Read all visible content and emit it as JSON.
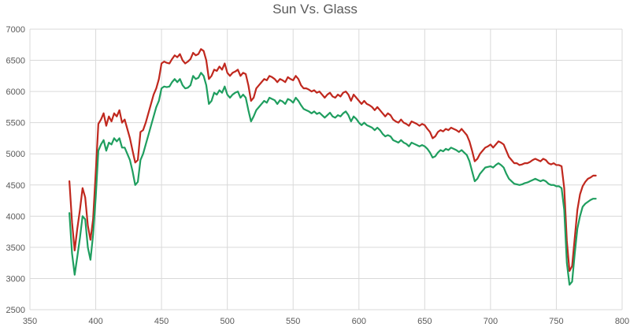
{
  "chart_data": {
    "type": "line",
    "title": "Sun Vs. Glass",
    "xlabel": "",
    "ylabel": "",
    "xlim": [
      350,
      800
    ],
    "ylim": [
      2500,
      7000
    ],
    "grid": true,
    "legend": "none",
    "x_ticks": [
      350,
      400,
      450,
      500,
      550,
      600,
      650,
      700,
      750,
      800
    ],
    "y_ticks": [
      2500,
      3000,
      3500,
      4000,
      4500,
      5000,
      5500,
      6000,
      6500,
      7000
    ],
    "series": [
      {
        "color": "#c0281e",
        "x": [
          380,
          382,
          384,
          386,
          388,
          390,
          392,
          394,
          396,
          398,
          400,
          402,
          404,
          406,
          408,
          410,
          412,
          414,
          416,
          418,
          420,
          422,
          424,
          426,
          428,
          430,
          432,
          434,
          436,
          438,
          440,
          442,
          444,
          446,
          448,
          450,
          452,
          454,
          456,
          458,
          460,
          462,
          464,
          466,
          468,
          470,
          472,
          474,
          476,
          478,
          480,
          482,
          484,
          486,
          488,
          490,
          492,
          494,
          496,
          498,
          500,
          502,
          504,
          506,
          508,
          510,
          512,
          514,
          516,
          518,
          520,
          522,
          524,
          526,
          528,
          530,
          532,
          534,
          536,
          538,
          540,
          542,
          544,
          546,
          548,
          550,
          552,
          554,
          556,
          558,
          560,
          562,
          564,
          566,
          568,
          570,
          572,
          574,
          576,
          578,
          580,
          582,
          584,
          586,
          588,
          590,
          592,
          594,
          596,
          598,
          600,
          602,
          604,
          606,
          608,
          610,
          612,
          614,
          616,
          618,
          620,
          622,
          624,
          626,
          628,
          630,
          632,
          634,
          636,
          638,
          640,
          642,
          644,
          646,
          648,
          650,
          652,
          654,
          656,
          658,
          660,
          662,
          664,
          666,
          668,
          670,
          672,
          674,
          676,
          678,
          680,
          682,
          684,
          686,
          688,
          690,
          692,
          694,
          696,
          698,
          700,
          702,
          704,
          706,
          708,
          710,
          712,
          714,
          716,
          718,
          720,
          722,
          724,
          726,
          728,
          730,
          732,
          734,
          736,
          738,
          740,
          742,
          744,
          746,
          748,
          750,
          752,
          754,
          756,
          758,
          760,
          762,
          764,
          766,
          768,
          770,
          772,
          774,
          776,
          778,
          780
        ],
        "values": [
          4560,
          3900,
          3450,
          3800,
          4100,
          4450,
          4300,
          3850,
          3620,
          3950,
          4700,
          5480,
          5550,
          5650,
          5450,
          5600,
          5520,
          5650,
          5600,
          5700,
          5500,
          5550,
          5400,
          5250,
          5050,
          4860,
          4900,
          5350,
          5380,
          5500,
          5650,
          5800,
          5950,
          6050,
          6200,
          6450,
          6480,
          6460,
          6450,
          6520,
          6580,
          6550,
          6600,
          6500,
          6450,
          6480,
          6520,
          6620,
          6580,
          6600,
          6680,
          6650,
          6500,
          6200,
          6250,
          6350,
          6330,
          6400,
          6350,
          6450,
          6300,
          6250,
          6300,
          6320,
          6350,
          6250,
          6300,
          6280,
          6100,
          5850,
          5900,
          6050,
          6100,
          6150,
          6200,
          6180,
          6250,
          6230,
          6200,
          6150,
          6200,
          6180,
          6150,
          6230,
          6200,
          6180,
          6250,
          6200,
          6100,
          6050,
          6050,
          6030,
          6000,
          6020,
          5980,
          6000,
          5950,
          5900,
          5950,
          5980,
          5920,
          5900,
          5950,
          5920,
          5980,
          6000,
          5950,
          5850,
          5950,
          5900,
          5850,
          5800,
          5850,
          5800,
          5780,
          5750,
          5700,
          5750,
          5700,
          5650,
          5600,
          5650,
          5620,
          5550,
          5520,
          5500,
          5550,
          5500,
          5480,
          5450,
          5520,
          5500,
          5480,
          5450,
          5480,
          5460,
          5400,
          5350,
          5250,
          5280,
          5350,
          5380,
          5360,
          5400,
          5380,
          5420,
          5400,
          5380,
          5350,
          5400,
          5350,
          5300,
          5200,
          5050,
          4880,
          4920,
          5000,
          5050,
          5100,
          5120,
          5150,
          5100,
          5150,
          5200,
          5180,
          5150,
          5050,
          4950,
          4900,
          4850,
          4850,
          4820,
          4830,
          4850,
          4850,
          4870,
          4900,
          4920,
          4900,
          4880,
          4920,
          4900,
          4850,
          4830,
          4850,
          4820,
          4820,
          4800,
          4450,
          3600,
          3120,
          3200,
          3650,
          4100,
          4350,
          4480,
          4550,
          4600,
          4620,
          4650,
          4650
        ]
      },
      {
        "color": "#1f9e5f",
        "x": [
          380,
          382,
          384,
          386,
          388,
          390,
          392,
          394,
          396,
          398,
          400,
          402,
          404,
          406,
          408,
          410,
          412,
          414,
          416,
          418,
          420,
          422,
          424,
          426,
          428,
          430,
          432,
          434,
          436,
          438,
          440,
          442,
          444,
          446,
          448,
          450,
          452,
          454,
          456,
          458,
          460,
          462,
          464,
          466,
          468,
          470,
          472,
          474,
          476,
          478,
          480,
          482,
          484,
          486,
          488,
          490,
          492,
          494,
          496,
          498,
          500,
          502,
          504,
          506,
          508,
          510,
          512,
          514,
          516,
          518,
          520,
          522,
          524,
          526,
          528,
          530,
          532,
          534,
          536,
          538,
          540,
          542,
          544,
          546,
          548,
          550,
          552,
          554,
          556,
          558,
          560,
          562,
          564,
          566,
          568,
          570,
          572,
          574,
          576,
          578,
          580,
          582,
          584,
          586,
          588,
          590,
          592,
          594,
          596,
          598,
          600,
          602,
          604,
          606,
          608,
          610,
          612,
          614,
          616,
          618,
          620,
          622,
          624,
          626,
          628,
          630,
          632,
          634,
          636,
          638,
          640,
          642,
          644,
          646,
          648,
          650,
          652,
          654,
          656,
          658,
          660,
          662,
          664,
          666,
          668,
          670,
          672,
          674,
          676,
          678,
          680,
          682,
          684,
          686,
          688,
          690,
          692,
          694,
          696,
          698,
          700,
          702,
          704,
          706,
          708,
          710,
          712,
          714,
          716,
          718,
          720,
          722,
          724,
          726,
          728,
          730,
          732,
          734,
          736,
          738,
          740,
          742,
          744,
          746,
          748,
          750,
          752,
          754,
          756,
          758,
          760,
          762,
          764,
          766,
          768,
          770,
          772,
          774,
          776,
          778,
          780
        ],
        "values": [
          4050,
          3400,
          3060,
          3350,
          3650,
          4000,
          3950,
          3500,
          3300,
          3700,
          4300,
          5050,
          5150,
          5220,
          5050,
          5180,
          5150,
          5250,
          5200,
          5250,
          5100,
          5100,
          5000,
          4900,
          4720,
          4500,
          4550,
          4900,
          5000,
          5150,
          5300,
          5450,
          5600,
          5750,
          5850,
          6050,
          6080,
          6070,
          6080,
          6150,
          6200,
          6150,
          6200,
          6100,
          6050,
          6060,
          6100,
          6250,
          6200,
          6220,
          6300,
          6250,
          6100,
          5800,
          5850,
          5980,
          5950,
          6020,
          5980,
          6080,
          5950,
          5900,
          5950,
          5980,
          6000,
          5900,
          5950,
          5900,
          5700,
          5520,
          5600,
          5700,
          5750,
          5800,
          5850,
          5820,
          5900,
          5880,
          5860,
          5800,
          5860,
          5840,
          5800,
          5880,
          5860,
          5820,
          5900,
          5850,
          5780,
          5720,
          5700,
          5680,
          5650,
          5680,
          5640,
          5660,
          5620,
          5580,
          5620,
          5660,
          5600,
          5580,
          5620,
          5600,
          5650,
          5680,
          5620,
          5520,
          5600,
          5560,
          5500,
          5460,
          5500,
          5460,
          5440,
          5420,
          5380,
          5420,
          5380,
          5320,
          5280,
          5300,
          5280,
          5220,
          5200,
          5180,
          5220,
          5180,
          5160,
          5120,
          5180,
          5160,
          5140,
          5120,
          5140,
          5120,
          5080,
          5020,
          4940,
          4960,
          5020,
          5060,
          5040,
          5080,
          5060,
          5100,
          5080,
          5060,
          5030,
          5060,
          5020,
          4980,
          4880,
          4720,
          4560,
          4600,
          4680,
          4730,
          4780,
          4790,
          4800,
          4780,
          4820,
          4850,
          4820,
          4780,
          4680,
          4600,
          4560,
          4520,
          4510,
          4500,
          4510,
          4530,
          4540,
          4560,
          4580,
          4600,
          4580,
          4560,
          4580,
          4560,
          4520,
          4500,
          4500,
          4480,
          4480,
          4450,
          4100,
          3250,
          2900,
          2950,
          3400,
          3800,
          4000,
          4150,
          4200,
          4230,
          4260,
          4280,
          4280
        ]
      }
    ]
  }
}
